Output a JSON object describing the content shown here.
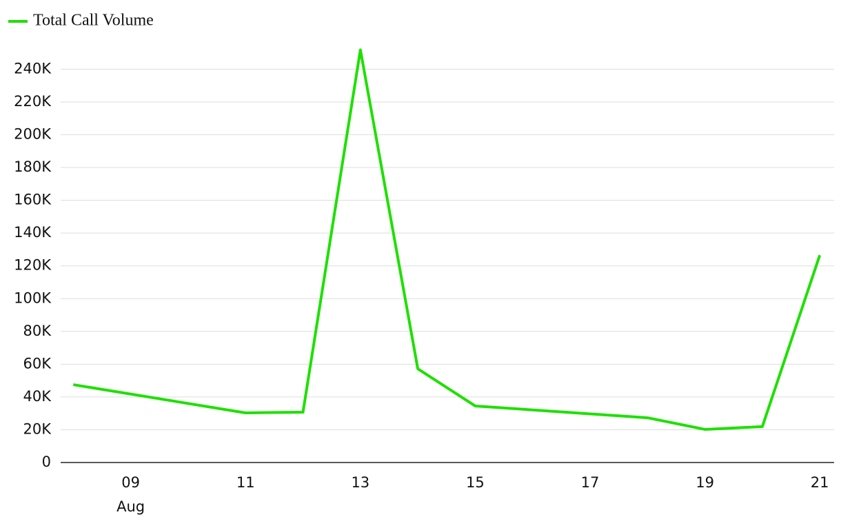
{
  "chart_data": {
    "type": "line",
    "x": [
      8,
      11,
      12,
      13,
      14,
      15,
      18,
      19,
      20,
      21
    ],
    "x_month_label": "Aug",
    "series": [
      {
        "name": "Total Call Volume",
        "color": "#1ee000",
        "values": [
          47500,
          30300,
          30700,
          251800,
          57200,
          34500,
          27300,
          20200,
          21900,
          126500
        ]
      }
    ],
    "xlim": [
      7.78,
      21.25
    ],
    "xticks": [
      {
        "value": 9,
        "label": "09"
      },
      11,
      13,
      15,
      17,
      19,
      21
    ],
    "ylim": [
      0,
      257000
    ],
    "yticks": [
      0,
      {
        "value": 20000,
        "label": "20K"
      },
      {
        "value": 40000,
        "label": "40K"
      },
      {
        "value": 60000,
        "label": "60K"
      },
      {
        "value": 80000,
        "label": "80K"
      },
      {
        "value": 100000,
        "label": "100K"
      },
      {
        "value": 120000,
        "label": "120K"
      },
      {
        "value": 140000,
        "label": "140K"
      },
      {
        "value": 160000,
        "label": "160K"
      },
      {
        "value": 180000,
        "label": "180K"
      },
      {
        "value": 200000,
        "label": "200K"
      },
      {
        "value": 220000,
        "label": "220K"
      },
      {
        "value": 240000,
        "label": "240K"
      }
    ],
    "grid": true,
    "legend": "top-left"
  }
}
